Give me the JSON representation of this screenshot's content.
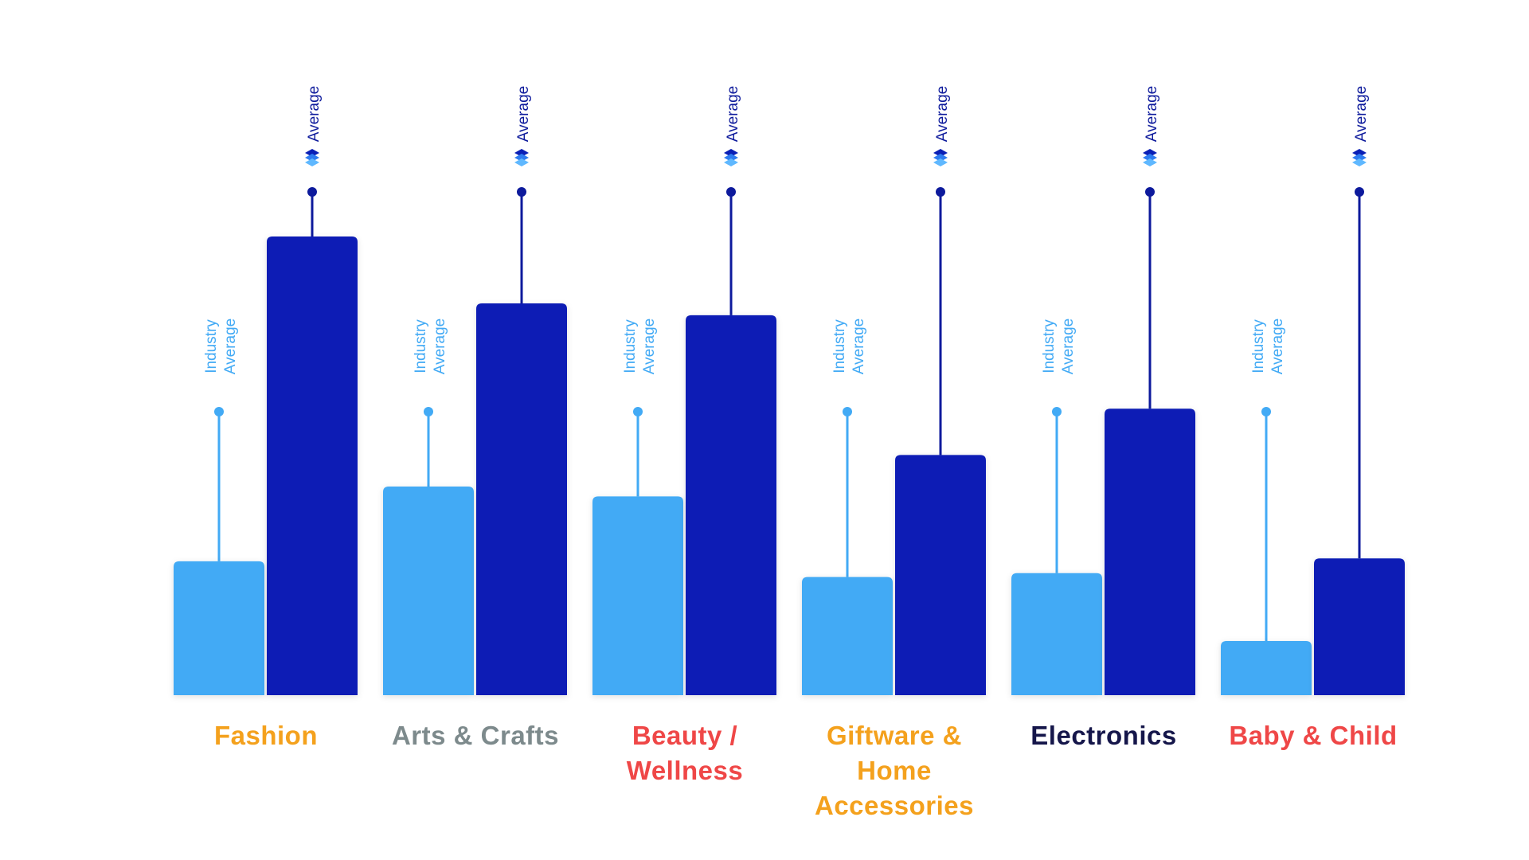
{
  "chart_data": {
    "type": "bar",
    "categories": [
      "Fashion",
      "Arts & Crafts",
      "Beauty / Wellness",
      "Giftware & Home Accessories",
      "Electronics",
      "Baby & Child"
    ],
    "category_colors": [
      "#f4a11d",
      "#7d8a8c",
      "#ef4747",
      "#f4a11d",
      "#15164a",
      "#ef4747"
    ],
    "series": [
      {
        "name": "Industry Average",
        "color": "#42aaf5",
        "values": [
          136,
          212,
          202,
          120,
          124,
          55
        ]
      },
      {
        "name": "Average",
        "color": "#0b1fb5",
        "values": [
          466,
          398,
          386,
          244,
          291,
          139
        ]
      }
    ]
  }
}
